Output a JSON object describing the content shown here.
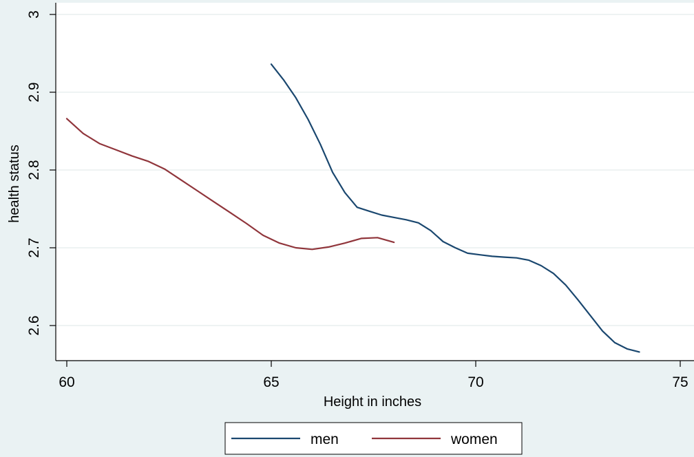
{
  "chart_data": {
    "type": "line",
    "xlabel": "Height in inches",
    "ylabel": "health status",
    "xlim": [
      60,
      75
    ],
    "ylim": [
      2.555,
      3.01
    ],
    "xticks": [
      60,
      65,
      70,
      75
    ],
    "yticks": [
      2.6,
      2.7,
      2.8,
      2.9,
      3
    ],
    "ytick_labels": [
      "2.6",
      "2.7",
      "2.8",
      "2.9",
      "3"
    ],
    "grid": true,
    "legend_position": "bottom",
    "series": [
      {
        "name": "men",
        "color": "#1a476f",
        "x": [
          65,
          65.3,
          65.6,
          65.9,
          66.2,
          66.5,
          66.8,
          67.1,
          67.4,
          67.7,
          68.0,
          68.3,
          68.6,
          68.9,
          69.2,
          69.5,
          69.8,
          70.1,
          70.4,
          70.7,
          71.0,
          71.3,
          71.6,
          71.9,
          72.2,
          72.5,
          72.8,
          73.1,
          73.4,
          73.7,
          74.0
        ],
        "y": [
          2.936,
          2.916,
          2.893,
          2.865,
          2.833,
          2.797,
          2.771,
          2.752,
          2.747,
          2.742,
          2.739,
          2.736,
          2.732,
          2.722,
          2.708,
          2.7,
          2.693,
          2.691,
          2.689,
          2.688,
          2.687,
          2.684,
          2.677,
          2.667,
          2.652,
          2.633,
          2.613,
          2.593,
          2.578,
          2.57,
          2.566
        ]
      },
      {
        "name": "women",
        "color": "#90353b",
        "x": [
          60,
          60.4,
          60.8,
          61.2,
          61.6,
          62.0,
          62.4,
          62.8,
          63.2,
          63.6,
          64.0,
          64.4,
          64.8,
          65.2,
          65.6,
          66.0,
          66.4,
          66.8,
          67.2,
          67.6,
          68.0
        ],
        "y": [
          2.866,
          2.847,
          2.834,
          2.826,
          2.818,
          2.811,
          2.801,
          2.787,
          2.773,
          2.759,
          2.745,
          2.731,
          2.716,
          2.706,
          2.7,
          2.698,
          2.701,
          2.706,
          2.712,
          2.713,
          2.707
        ]
      }
    ]
  }
}
